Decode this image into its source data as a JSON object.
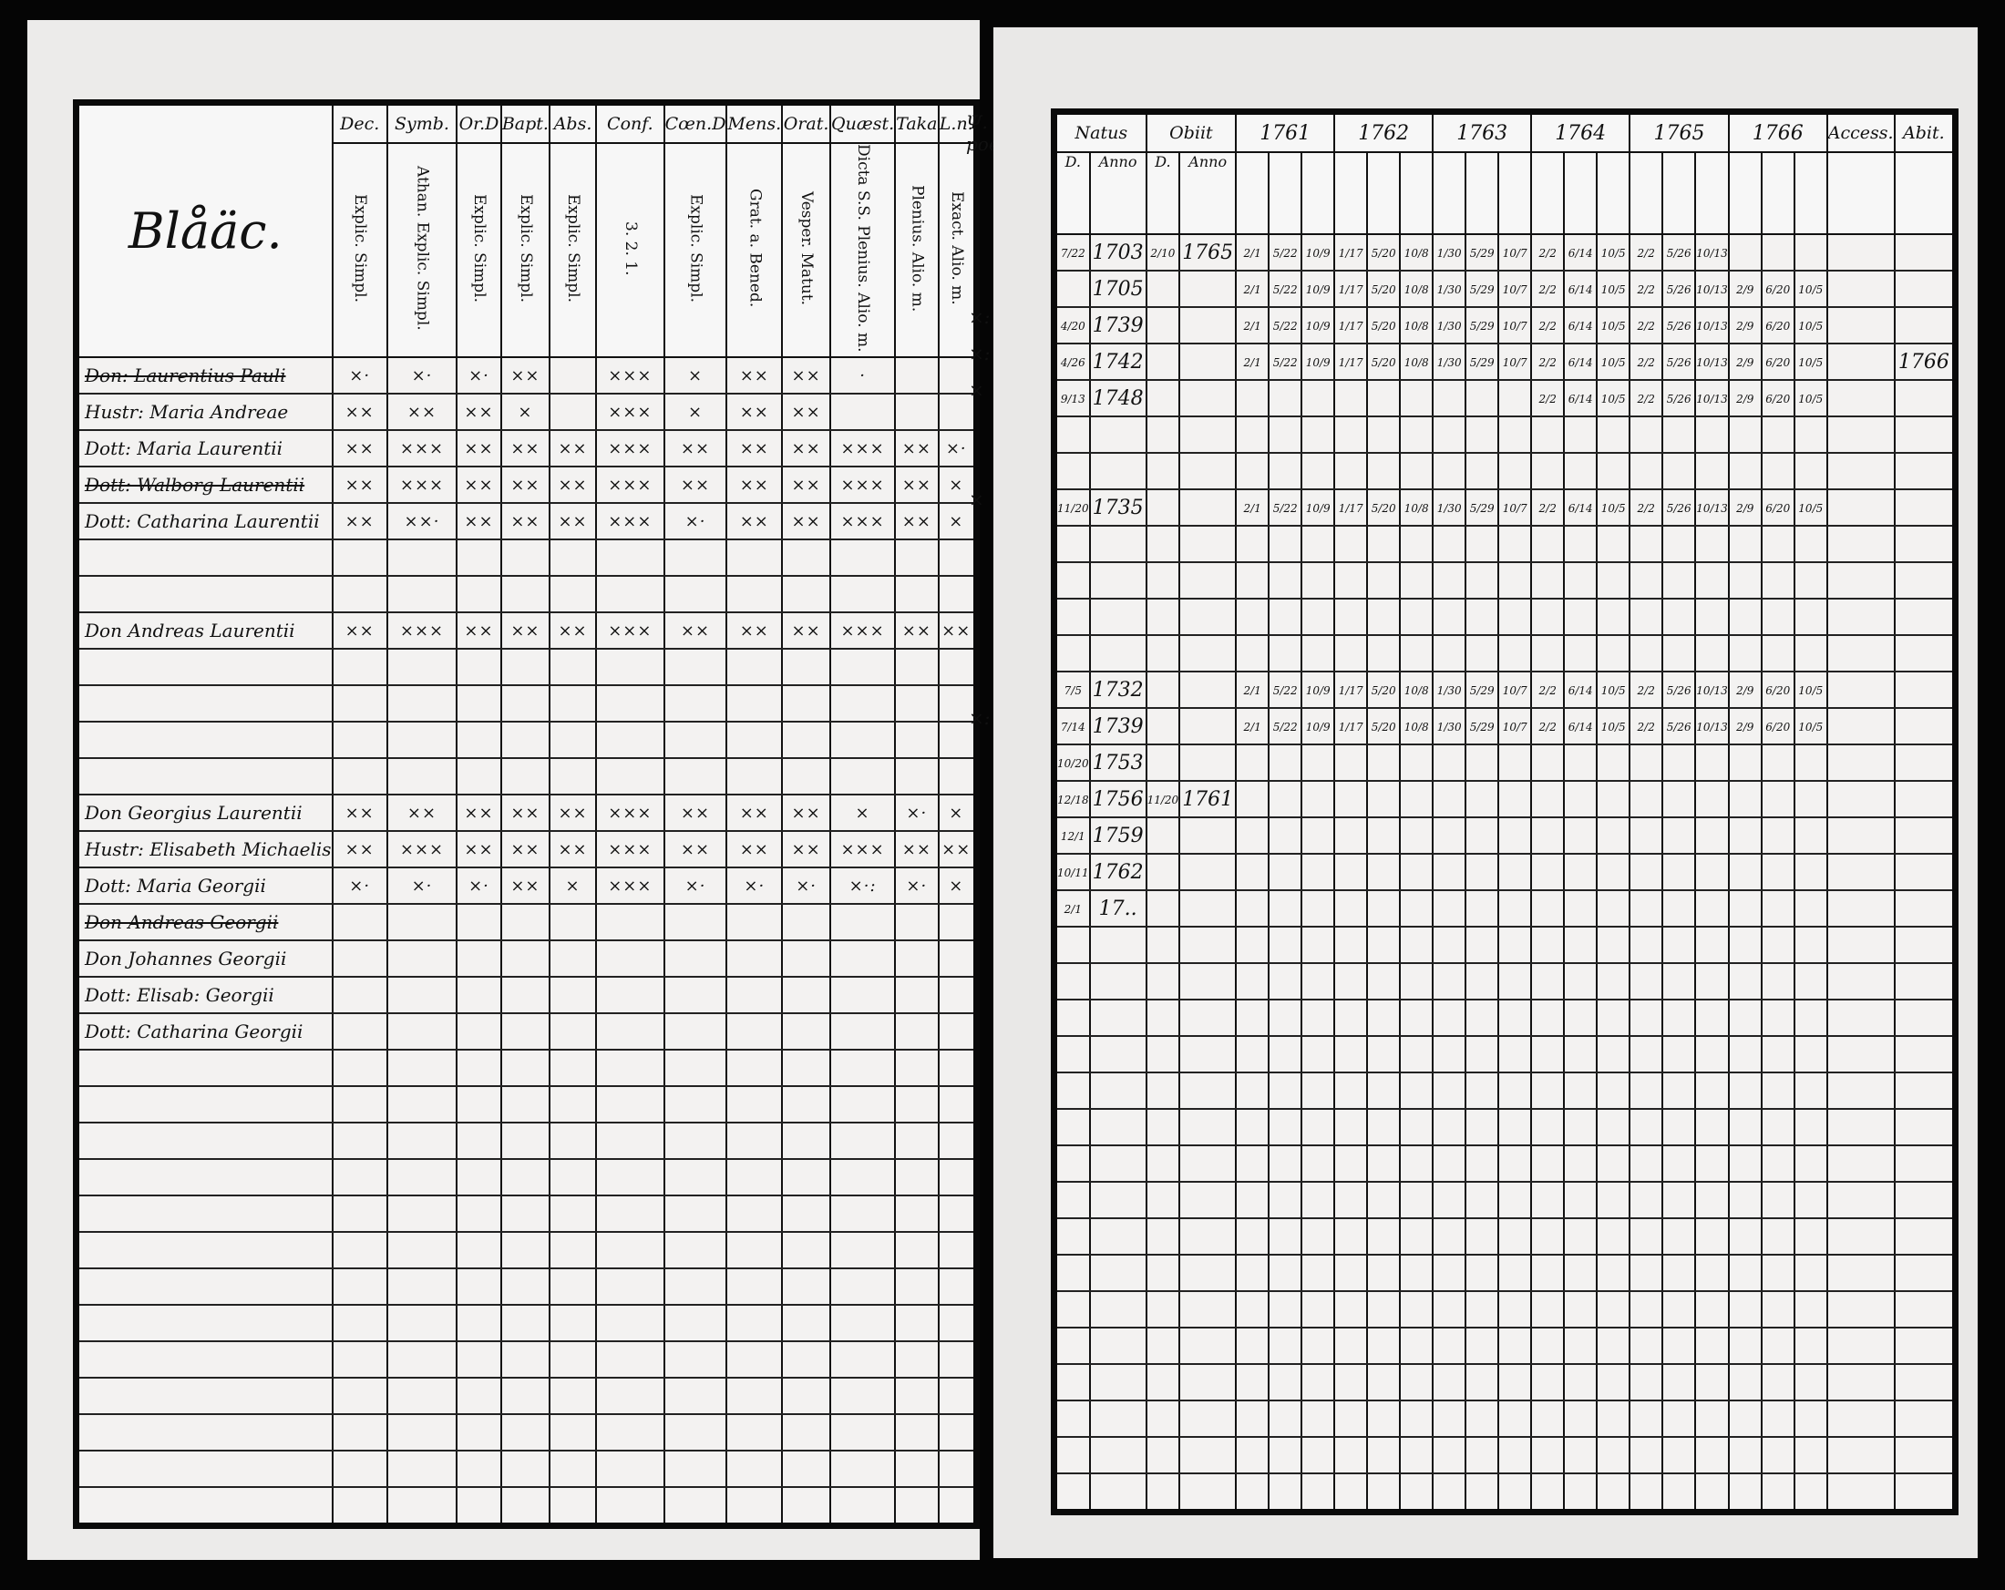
{
  "left": {
    "title": "Blåäc.",
    "margin_header": "Ψ. poen:",
    "columns": [
      {
        "head": "Dec.",
        "sub": "Explic. Simpl."
      },
      {
        "head": "Symb.",
        "sub": "Athan. Explic. Simpl."
      },
      {
        "head": "Or.D",
        "sub": "Explic. Simpl."
      },
      {
        "head": "Bapt.",
        "sub": "Explic. Simpl."
      },
      {
        "head": "Abs.",
        "sub": "Explic. Simpl."
      },
      {
        "head": "Conf.",
        "sub": "3. 2. 1."
      },
      {
        "head": "Cœn.D",
        "sub": "Explic. Simpl."
      },
      {
        "head": "Mens.",
        "sub": "Grat. a. Bened."
      },
      {
        "head": "Orat.",
        "sub": "Vesper. Matut."
      },
      {
        "head": "Quæst.",
        "sub": "Dicta S.S. Plenius. Alio. m."
      },
      {
        "head": "Taka",
        "sub": "Plenius. Alio. m."
      },
      {
        "head": "L.n.",
        "sub": "Exact. Alio. m."
      }
    ],
    "rows": [
      {
        "name": "Don: Laurentius Pauli",
        "struck": true,
        "marks": [
          "×·",
          "×·",
          "×·",
          "××",
          "",
          "×××",
          "×",
          "××",
          "××",
          "·",
          "",
          ""
        ],
        "margin": ""
      },
      {
        "name": "Hustr: Maria Andreae",
        "struck": false,
        "marks": [
          "××",
          "××",
          "××",
          "×",
          "",
          "×××",
          "×",
          "××",
          "××",
          "",
          "",
          ""
        ],
        "margin": ""
      },
      {
        "name": "Dott: Maria Laurentii",
        "struck": false,
        "marks": [
          "××",
          "×××",
          "××",
          "××",
          "××",
          "×××",
          "××",
          "××",
          "××",
          "×××",
          "××",
          "×·"
        ],
        "margin": "×:"
      },
      {
        "name": "Dott: Walborg Laurentii",
        "struck": true,
        "marks": [
          "××",
          "×××",
          "××",
          "××",
          "××",
          "×××",
          "××",
          "××",
          "××",
          "×××",
          "××",
          "×"
        ],
        "margin": "×:"
      },
      {
        "name": "Dott: Catharina Laurentii",
        "struck": false,
        "marks": [
          "××",
          "××·",
          "××",
          "××",
          "××",
          "×××",
          "×·",
          "××",
          "××",
          "×××",
          "××",
          "×"
        ],
        "margin": "×"
      },
      {
        "name": "",
        "struck": false,
        "marks": [],
        "margin": ""
      },
      {
        "name": "",
        "struck": false,
        "marks": [],
        "margin": ""
      },
      {
        "name": "Don Andreas Laurentii",
        "struck": false,
        "marks": [
          "××",
          "×××",
          "××",
          "××",
          "××",
          "×××",
          "××",
          "××",
          "××",
          "×××",
          "××",
          "××"
        ],
        "margin": "×"
      },
      {
        "name": "",
        "struck": false,
        "marks": [],
        "margin": ""
      },
      {
        "name": "",
        "struck": false,
        "marks": [],
        "margin": ""
      },
      {
        "name": "",
        "struck": false,
        "marks": [],
        "margin": ""
      },
      {
        "name": "",
        "struck": false,
        "marks": [],
        "margin": ""
      },
      {
        "name": "Don Georgius Laurentii",
        "struck": false,
        "marks": [
          "××",
          "××",
          "××",
          "××",
          "××",
          "×××",
          "××",
          "××",
          "××",
          "×",
          "×·",
          "×"
        ],
        "margin": ""
      },
      {
        "name": "Hustr: Elisabeth Michaelis",
        "struck": false,
        "marks": [
          "××",
          "×××",
          "××",
          "××",
          "××",
          "×××",
          "××",
          "××",
          "××",
          "×××",
          "××",
          "××"
        ],
        "margin": "×:"
      },
      {
        "name": "Dott: Maria Georgii",
        "struck": false,
        "marks": [
          "×·",
          "×·",
          "×·",
          "××",
          "×",
          "×××",
          "×·",
          "×·",
          "×·",
          "×·:",
          "×·",
          "×"
        ],
        "margin": ""
      },
      {
        "name": "Don Andreas Georgii",
        "struck": true,
        "marks": [],
        "margin": ""
      },
      {
        "name": "Don Johannes Georgii",
        "struck": false,
        "marks": [],
        "margin": ""
      },
      {
        "name": "Dott: Elisab: Georgii",
        "struck": false,
        "marks": [],
        "margin": ""
      },
      {
        "name": "Dott: Catharina Georgii",
        "struck": false,
        "marks": [],
        "margin": ""
      }
    ]
  },
  "right": {
    "headers": {
      "natus": "Natus",
      "obiit": "Obiit",
      "accessit": "Access.",
      "abit": "Abit.",
      "day": "D.",
      "anno": "Anno"
    },
    "years": [
      "1761",
      "1762",
      "1763",
      "1764",
      "1765",
      "1766"
    ],
    "exam_dates": {
      "1761": [
        "2/1",
        "5/22",
        "10/9"
      ],
      "1762": [
        "1/17",
        "5/20",
        "10/8"
      ],
      "1763": [
        "1/30",
        "5/29",
        "10/7"
      ],
      "1764": [
        "2/2",
        "6/14",
        "10/5"
      ],
      "1765": [
        "2/2",
        "5/26",
        "10/13"
      ],
      "1766": [
        "2/9",
        "6/20",
        "10/5"
      ]
    },
    "rows": [
      {
        "natus_d": "7/22",
        "natus_anno": "1703",
        "obiit_d": "2/10",
        "obiit_anno": "1765",
        "years": [
          "1761",
          "1762",
          "1763",
          "1764",
          "1765"
        ],
        "abit": ""
      },
      {
        "natus_d": "",
        "natus_anno": "1705",
        "obiit_d": "",
        "obiit_anno": "",
        "years": [
          "1761",
          "1762",
          "1763",
          "1764",
          "1765",
          "1766"
        ],
        "abit": ""
      },
      {
        "natus_d": "4/20",
        "natus_anno": "1739",
        "obiit_d": "",
        "obiit_anno": "",
        "years": [
          "1761",
          "1762",
          "1763",
          "1764",
          "1765",
          "1766"
        ],
        "abit": ""
      },
      {
        "natus_d": "4/26",
        "natus_anno": "1742",
        "obiit_d": "",
        "obiit_anno": "",
        "years": [
          "1761",
          "1762",
          "1763",
          "1764",
          "1765",
          "1766"
        ],
        "abit": "1766"
      },
      {
        "natus_d": "9/13",
        "natus_anno": "1748",
        "obiit_d": "",
        "obiit_anno": "",
        "years": [
          "1764",
          "1765",
          "1766"
        ],
        "abit": ""
      },
      {
        "natus_d": "",
        "natus_anno": "",
        "obiit_d": "",
        "obiit_anno": "",
        "years": [],
        "abit": ""
      },
      {
        "natus_d": "",
        "natus_anno": "",
        "obiit_d": "",
        "obiit_anno": "",
        "years": [],
        "abit": ""
      },
      {
        "natus_d": "11/20",
        "natus_anno": "1735",
        "obiit_d": "",
        "obiit_anno": "",
        "years": [
          "1761",
          "1762",
          "1763",
          "1764",
          "1765",
          "1766"
        ],
        "abit": ""
      },
      {
        "natus_d": "",
        "natus_anno": "",
        "obiit_d": "",
        "obiit_anno": "",
        "years": [],
        "abit": ""
      },
      {
        "natus_d": "",
        "natus_anno": "",
        "obiit_d": "",
        "obiit_anno": "",
        "years": [],
        "abit": ""
      },
      {
        "natus_d": "",
        "natus_anno": "",
        "obiit_d": "",
        "obiit_anno": "",
        "years": [],
        "abit": ""
      },
      {
        "natus_d": "",
        "natus_anno": "",
        "obiit_d": "",
        "obiit_anno": "",
        "years": [],
        "abit": ""
      },
      {
        "natus_d": "7/5",
        "natus_anno": "1732",
        "obiit_d": "",
        "obiit_anno": "",
        "years": [
          "1761",
          "1762",
          "1763",
          "1764",
          "1765",
          "1766"
        ],
        "abit": ""
      },
      {
        "natus_d": "7/14",
        "natus_anno": "1739",
        "obiit_d": "",
        "obiit_anno": "",
        "years": [
          "1761",
          "1762",
          "1763",
          "1764",
          "1765",
          "1766"
        ],
        "abit": ""
      },
      {
        "natus_d": "10/20",
        "natus_anno": "1753",
        "obiit_d": "",
        "obiit_anno": "",
        "years": [],
        "abit": ""
      },
      {
        "natus_d": "12/18",
        "natus_anno": "1756",
        "obiit_d": "11/20",
        "obiit_anno": "1761",
        "years": [],
        "abit": ""
      },
      {
        "natus_d": "12/1",
        "natus_anno": "1759",
        "obiit_d": "",
        "obiit_anno": "",
        "years": [],
        "abit": ""
      },
      {
        "natus_d": "10/11",
        "natus_anno": "1762",
        "obiit_d": "",
        "obiit_anno": "",
        "years": [],
        "abit": ""
      },
      {
        "natus_d": "2/1",
        "natus_anno": "17..",
        "obiit_d": "",
        "obiit_anno": "",
        "years": [],
        "abit": ""
      }
    ]
  }
}
